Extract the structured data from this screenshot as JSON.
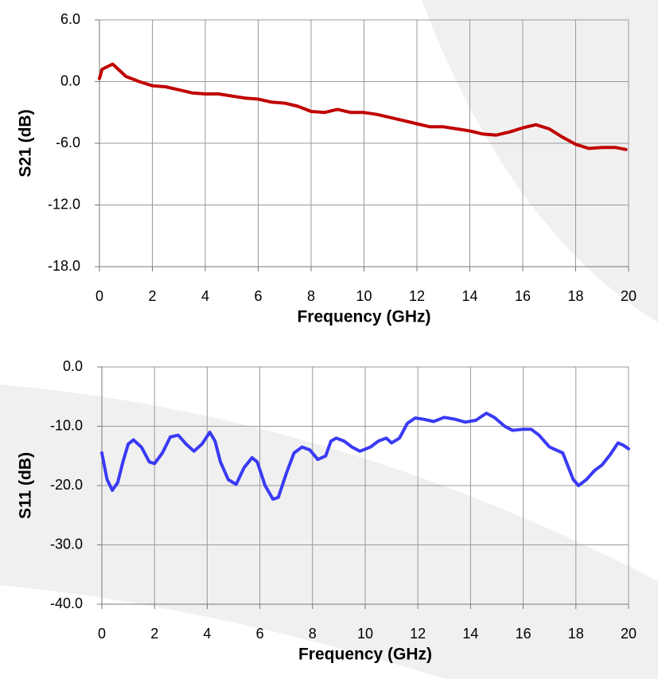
{
  "chart_data": [
    {
      "type": "line",
      "x_label": "Frequency (GHz)",
      "y_label": "S21 (dB)",
      "color": "#c00000",
      "x": [
        0,
        0.1,
        0.5,
        1,
        1.5,
        2,
        2.5,
        3,
        3.5,
        4,
        4.5,
        5,
        5.5,
        6,
        6.5,
        7,
        7.5,
        8,
        8.5,
        9,
        9.5,
        10,
        10.5,
        11,
        11.5,
        12,
        12.5,
        13,
        13.5,
        14,
        14.5,
        15,
        15.5,
        16,
        16.5,
        17,
        17.5,
        18,
        18.5,
        19,
        19.5,
        19.9
      ],
      "values": [
        0.3,
        1.2,
        1.7,
        0.5,
        0,
        -0.4,
        -0.5,
        -0.8,
        -1.1,
        -1.2,
        -1.2,
        -1.4,
        -1.6,
        -1.7,
        -2.0,
        -2.1,
        -2.4,
        -2.9,
        -3.0,
        -2.7,
        -3.0,
        -3.0,
        -3.2,
        -3.5,
        -3.8,
        -4.1,
        -4.4,
        -4.4,
        -4.6,
        -4.8,
        -5.1,
        -5.2,
        -4.9,
        -4.5,
        -4.2,
        -4.6,
        -5.4,
        -6.1,
        -6.5,
        -6.4,
        -6.4,
        -6.6
      ],
      "xlim": [
        0,
        20
      ],
      "xticks": [
        0,
        2,
        4,
        6,
        8,
        10,
        12,
        14,
        16,
        18,
        20
      ],
      "ylim": [
        -18,
        6
      ],
      "yticks": [
        {
          "value": -18,
          "label": "-18.0"
        },
        {
          "value": -12,
          "label": "-12.0"
        },
        {
          "value": -6,
          "label": "-6.0"
        },
        {
          "value": 0,
          "label": "0.0"
        },
        {
          "value": 6,
          "label": "6.0"
        }
      ],
      "grid": true
    },
    {
      "type": "line",
      "x_label": "Frequency (GHz)",
      "y_label": "S11 (dB)",
      "color": "#3a3af5",
      "x": [
        0,
        0.2,
        0.4,
        0.6,
        0.8,
        1,
        1.2,
        1.5,
        1.8,
        2,
        2.3,
        2.6,
        2.9,
        3.2,
        3.5,
        3.8,
        4.1,
        4.3,
        4.5,
        4.8,
        5.1,
        5.4,
        5.7,
        5.9,
        6.2,
        6.5,
        6.7,
        7,
        7.3,
        7.6,
        7.9,
        8.2,
        8.5,
        8.7,
        8.9,
        9.2,
        9.5,
        9.8,
        10.2,
        10.5,
        10.8,
        11,
        11.3,
        11.6,
        11.9,
        12.2,
        12.6,
        13,
        13.4,
        13.8,
        14.2,
        14.6,
        14.9,
        15.3,
        15.6,
        16,
        16.3,
        16.6,
        17,
        17.5,
        17.9,
        18.1,
        18.4,
        18.7,
        19,
        19.3,
        19.6,
        19.8,
        20
      ],
      "values": [
        -14.5,
        -19,
        -20.8,
        -19.5,
        -16,
        -13,
        -12.3,
        -13.5,
        -16,
        -16.3,
        -14.5,
        -11.8,
        -11.5,
        -13,
        -14.2,
        -13,
        -11,
        -12.5,
        -16,
        -19,
        -19.8,
        -17,
        -15.3,
        -16,
        -20,
        -22.3,
        -22,
        -18,
        -14.5,
        -13.5,
        -14,
        -15.6,
        -15,
        -12.5,
        -12,
        -12.5,
        -13.5,
        -14.2,
        -13.5,
        -12.5,
        -12,
        -12.8,
        -12,
        -9.5,
        -8.6,
        -8.8,
        -9.2,
        -8.5,
        -8.8,
        -9.3,
        -9,
        -7.8,
        -8.5,
        -10,
        -10.7,
        -10.5,
        -10.5,
        -11.5,
        -13.5,
        -14.5,
        -19,
        -20,
        -19,
        -17.5,
        -16.5,
        -14.8,
        -12.8,
        -13.2,
        -13.8
      ],
      "xlim": [
        0,
        20
      ],
      "xticks": [
        0,
        2,
        4,
        6,
        8,
        10,
        12,
        14,
        16,
        18,
        20
      ],
      "ylim": [
        -40,
        0
      ],
      "yticks": [
        {
          "value": -40,
          "label": "-40.0"
        },
        {
          "value": -30,
          "label": "-30.0"
        },
        {
          "value": -20,
          "label": "-20.0"
        },
        {
          "value": -10,
          "label": "-10.0"
        },
        {
          "value": 0,
          "label": "0.0"
        }
      ],
      "grid": true
    }
  ]
}
